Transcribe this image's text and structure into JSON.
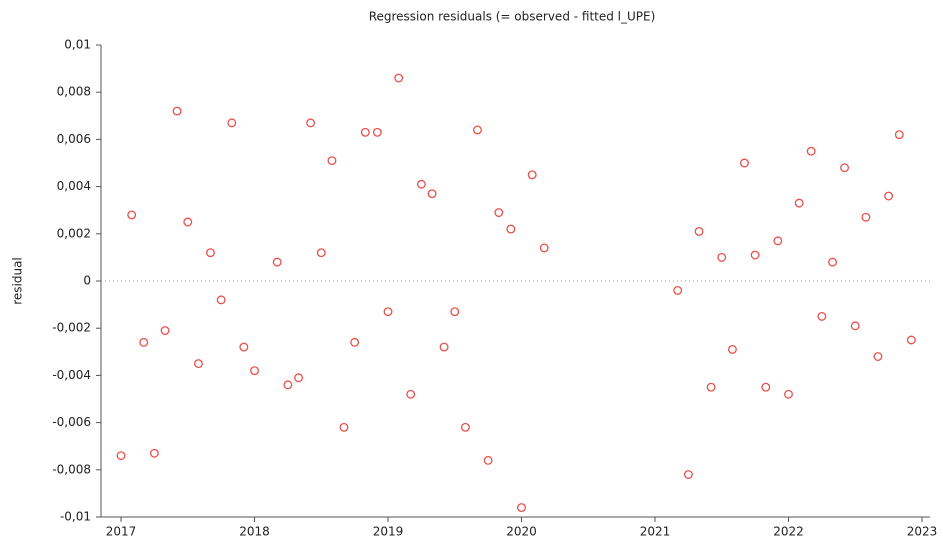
{
  "chart_data": {
    "type": "scatter",
    "title": "Regression residuals (= observed - fitted l_UPE)",
    "ylabel": "residual",
    "series": [
      {
        "name": "residual",
        "color": "#e8504a",
        "x": [
          2017.0,
          2017.08,
          2017.17,
          2017.25,
          2017.33,
          2017.42,
          2017.5,
          2017.58,
          2017.67,
          2017.75,
          2017.83,
          2017.92,
          2018.0,
          2018.17,
          2018.25,
          2018.33,
          2018.42,
          2018.5,
          2018.58,
          2018.67,
          2018.75,
          2018.83,
          2018.92,
          2019.0,
          2019.08,
          2019.17,
          2019.25,
          2019.33,
          2019.42,
          2019.5,
          2019.58,
          2019.67,
          2019.75,
          2019.83,
          2019.92,
          2020.0,
          2020.08,
          2020.17,
          2021.17,
          2021.25,
          2021.33,
          2021.42,
          2021.5,
          2021.58,
          2021.67,
          2021.75,
          2021.83,
          2021.92,
          2022.0,
          2022.08,
          2022.17,
          2022.25,
          2022.33,
          2022.42,
          2022.5,
          2022.58,
          2022.67,
          2022.75,
          2022.83,
          2022.92
        ],
        "values": [
          -0.0074,
          0.0028,
          -0.0026,
          -0.0073,
          -0.0021,
          0.0072,
          0.0025,
          -0.0035,
          0.0012,
          -0.0008,
          0.0067,
          -0.0028,
          -0.0038,
          0.0008,
          -0.0044,
          -0.0041,
          0.0067,
          0.0012,
          0.0051,
          -0.0062,
          -0.0026,
          0.0063,
          0.0063,
          -0.0013,
          0.0086,
          -0.0048,
          0.0041,
          0.0037,
          -0.0028,
          -0.0013,
          -0.0062,
          0.0064,
          -0.0076,
          0.0029,
          0.0022,
          -0.0096,
          0.0045,
          0.0014,
          -0.0004,
          -0.0082,
          0.0021,
          -0.0045,
          0.001,
          -0.0029,
          0.005,
          0.0011,
          -0.0045,
          0.0017,
          -0.0048,
          0.0033,
          0.0055,
          -0.0015,
          0.0008,
          0.0048,
          -0.0019,
          0.0027,
          -0.0032,
          0.0036,
          0.0062,
          -0.0025
        ]
      }
    ],
    "xlim": [
      2016.85,
      2023.06
    ],
    "xticks": [
      2017,
      2018,
      2019,
      2020,
      2021,
      2022,
      2023
    ],
    "ylim": [
      -0.01,
      0.01
    ],
    "yticks": [
      {
        "value": -0.01,
        "label": "-0,01"
      },
      {
        "value": -0.008,
        "label": "-0,008"
      },
      {
        "value": -0.006,
        "label": "-0,006"
      },
      {
        "value": -0.004,
        "label": "-0,004"
      },
      {
        "value": -0.002,
        "label": "-0,002"
      },
      0,
      {
        "value": 0.002,
        "label": "0,002"
      },
      {
        "value": 0.004,
        "label": "0,004"
      },
      {
        "value": 0.006,
        "label": "0,006"
      },
      {
        "value": 0.008,
        "label": "0,008"
      },
      {
        "value": 0.01,
        "label": "0,01"
      }
    ],
    "zero_line": true
  }
}
